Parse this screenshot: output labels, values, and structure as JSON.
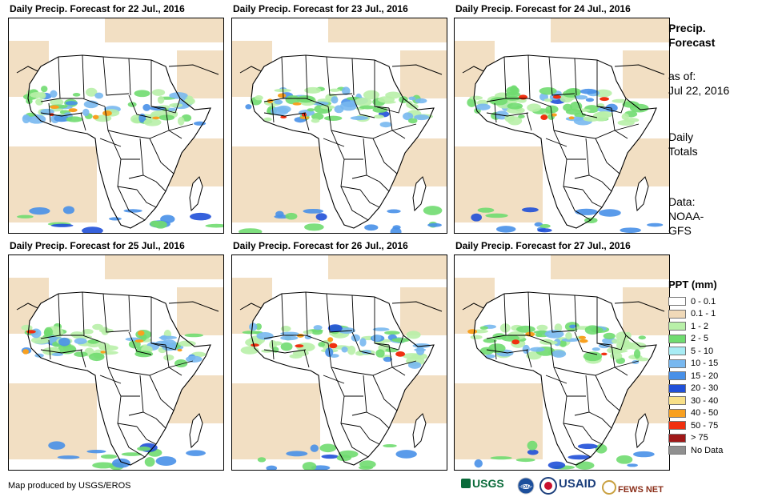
{
  "panels": [
    {
      "title": "Daily Precip. Forecast for 22 Jul., 2016"
    },
    {
      "title": "Daily Precip. Forecast for 23 Jul., 2016"
    },
    {
      "title": "Daily Precip. Forecast for 24 Jul., 2016"
    },
    {
      "title": "Daily Precip. Forecast for 25 Jul., 2016"
    },
    {
      "title": "Daily Precip. Forecast for 26 Jul., 2016"
    },
    {
      "title": "Daily Precip. Forecast for 27 Jul., 2016"
    }
  ],
  "sidebar": {
    "heading_line1": "Precip.",
    "heading_line2": "Forecast",
    "asof_line1": "as of:",
    "asof_line2": "Jul 22, 2016",
    "totals_line1": "Daily",
    "totals_line2": "Totals",
    "data_line1": "Data:",
    "data_line2": "NOAA-",
    "data_line3": "GFS"
  },
  "legend": {
    "title": "PPT (mm)",
    "items": [
      {
        "label": "0 - 0.1",
        "color": "#ffffff"
      },
      {
        "label": "0.1 - 1",
        "color": "#f0d9b8"
      },
      {
        "label": "1 - 2",
        "color": "#b8f0a8"
      },
      {
        "label": "2 - 5",
        "color": "#70dc70"
      },
      {
        "label": "5 - 10",
        "color": "#a8ecf4"
      },
      {
        "label": "10 - 15",
        "color": "#78b8f0"
      },
      {
        "label": "15 - 20",
        "color": "#4890e8"
      },
      {
        "label": "20 - 30",
        "color": "#2050d8"
      },
      {
        "label": "30 - 40",
        "color": "#f8e088"
      },
      {
        "label": "40 - 50",
        "color": "#f8a020"
      },
      {
        "label": "50 - 75",
        "color": "#f03010"
      },
      {
        "label": "> 75",
        "color": "#a01818"
      },
      {
        "label": "No Data",
        "color": "#909090"
      }
    ]
  },
  "footer": {
    "credit": "Map produced by USGS/EROS",
    "logos": {
      "usgs": "USGS",
      "noaa": "NOAA",
      "usaid": "USAID",
      "fewsnet": "FEWS NET"
    }
  }
}
